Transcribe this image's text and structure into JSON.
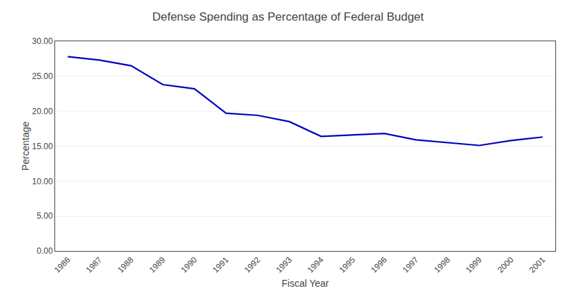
{
  "chart_data": {
    "type": "line",
    "title": "Defense Spending as Percentage of Federal Budget",
    "xlabel": "Fiscal Year",
    "ylabel": "Percentage",
    "x": [
      1986,
      1987,
      1988,
      1989,
      1990,
      1991,
      1992,
      1993,
      1994,
      1995,
      1996,
      1997,
      1998,
      1999,
      2000,
      2001
    ],
    "values": [
      27.8,
      27.3,
      26.5,
      23.8,
      23.2,
      19.7,
      19.4,
      18.5,
      16.4,
      16.6,
      16.8,
      15.9,
      15.5,
      15.1,
      15.8,
      16.3
    ],
    "color": "#0000BB",
    "xlim": [
      1985.6,
      2001.4
    ],
    "xticks": [
      1986,
      1987,
      1988,
      1989,
      1990,
      1991,
      1992,
      1993,
      1994,
      1995,
      1996,
      1997,
      1998,
      1999,
      2000,
      2001
    ],
    "ylim": [
      0.0,
      30.0
    ],
    "yticks": [
      {
        "value": 0.0,
        "label": "0.00"
      },
      {
        "value": 5.0,
        "label": "5.00"
      },
      {
        "value": 10.0,
        "label": "10.00"
      },
      {
        "value": 15.0,
        "label": "15.00"
      },
      {
        "value": 20.0,
        "label": "20.00"
      },
      {
        "value": 25.0,
        "label": "25.00"
      },
      {
        "value": 30.0,
        "label": "30.00"
      }
    ],
    "grid": true
  }
}
